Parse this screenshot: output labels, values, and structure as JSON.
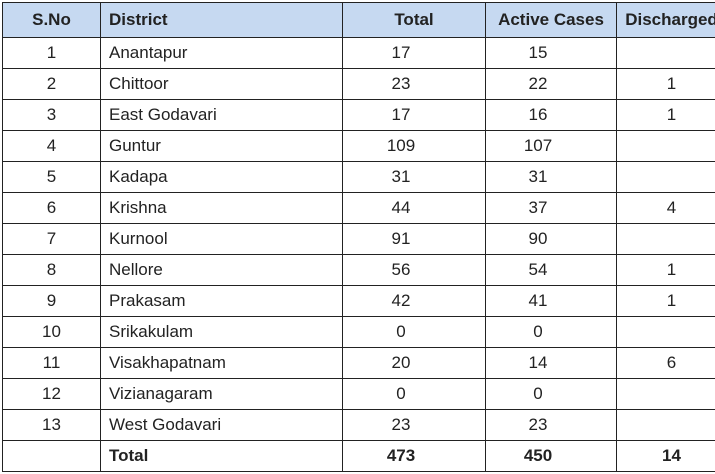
{
  "table": {
    "headers": [
      "S.No",
      "District",
      "Total",
      "Active Cases",
      "Discharged"
    ],
    "header_color": "#c6d9f1",
    "rows": [
      {
        "sno": "1",
        "district": "Anantapur",
        "total": "17",
        "active": "15",
        "discharged": ""
      },
      {
        "sno": "2",
        "district": "Chittoor",
        "total": "23",
        "active": "22",
        "discharged": "1"
      },
      {
        "sno": "3",
        "district": "East Godavari",
        "total": "17",
        "active": "16",
        "discharged": "1"
      },
      {
        "sno": "4",
        "district": "Guntur",
        "total": "109",
        "active": "107",
        "discharged": ""
      },
      {
        "sno": "5",
        "district": "Kadapa",
        "total": "31",
        "active": "31",
        "discharged": ""
      },
      {
        "sno": "6",
        "district": "Krishna",
        "total": "44",
        "active": "37",
        "discharged": "4"
      },
      {
        "sno": "7",
        "district": "Kurnool",
        "total": "91",
        "active": "90",
        "discharged": ""
      },
      {
        "sno": "8",
        "district": "Nellore",
        "total": "56",
        "active": "54",
        "discharged": "1"
      },
      {
        "sno": "9",
        "district": "Prakasam",
        "total": "42",
        "active": "41",
        "discharged": "1"
      },
      {
        "sno": "10",
        "district": "Srikakulam",
        "total": "0",
        "active": "0",
        "discharged": ""
      },
      {
        "sno": "11",
        "district": "Visakhapatnam",
        "total": "20",
        "active": "14",
        "discharged": "6"
      },
      {
        "sno": "12",
        "district": "Vizianagaram",
        "total": "0",
        "active": "0",
        "discharged": ""
      },
      {
        "sno": "13",
        "district": "West Godavari",
        "total": "23",
        "active": "23",
        "discharged": ""
      }
    ],
    "totals": {
      "label": "Total",
      "total": "473",
      "active": "450",
      "discharged": "14"
    }
  }
}
